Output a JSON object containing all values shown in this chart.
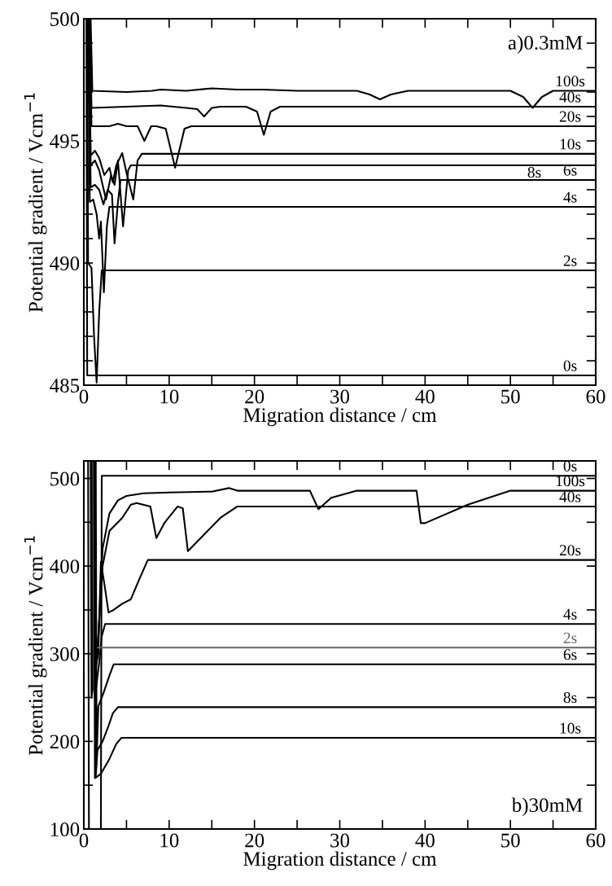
{
  "chart_data": [
    {
      "type": "line",
      "xlabel": "Migration distance / cm",
      "ylabel": "Potential gradient / Vcm$^{−1}$",
      "annotations": [
        "a)0.3mM"
      ],
      "xlim": [
        0,
        60
      ],
      "xticks": [
        0,
        {
          "value": 5,
          "label": null
        },
        10,
        {
          "value": 15,
          "label": null
        },
        20,
        {
          "value": 25,
          "label": null
        },
        30,
        {
          "value": 35,
          "label": null
        },
        40,
        {
          "value": 45,
          "label": null
        },
        50,
        {
          "value": 55,
          "label": null
        },
        60
      ],
      "ylim": [
        485,
        500
      ],
      "yticks": [
        485,
        {
          "value": 486,
          "label": null
        },
        {
          "value": 487,
          "label": null
        },
        {
          "value": 488,
          "label": null
        },
        {
          "value": 489,
          "label": null
        },
        490,
        {
          "value": 491,
          "label": null
        },
        {
          "value": 492,
          "label": null
        },
        {
          "value": 493,
          "label": null
        },
        {
          "value": 494,
          "label": null
        },
        495,
        {
          "value": 496,
          "label": null
        },
        {
          "value": 497,
          "label": null
        },
        {
          "value": 498,
          "label": null
        },
        {
          "value": 499,
          "label": null
        },
        500
      ],
      "tick_labels": "xy",
      "grid": false,
      "legend": "right",
      "marker": "none",
      "line_style": "solid",
      "series": [
        {
          "name": "0s",
          "color": "#000000",
          "x": [
            0.3,
            0.4,
            60
          ],
          "values": [
            500,
            485.4,
            485.4
          ]
        },
        {
          "name": "2s",
          "color": "#000000",
          "x": [
            0.4,
            0.5,
            0.9,
            1.2,
            1.5,
            1.8,
            2.1,
            60
          ],
          "values": [
            500,
            490,
            489.8,
            487,
            485.1,
            488,
            489.7,
            489.7
          ]
        },
        {
          "name": "4s",
          "color": "#000000",
          "x": [
            0.5,
            0.7,
            1.1,
            1.5,
            1.8,
            2.0,
            2.35,
            2.7,
            3.0,
            60
          ],
          "values": [
            500,
            492.5,
            492.6,
            492.0,
            491.0,
            491.7,
            488.8,
            491.5,
            492.3,
            492.3
          ]
        },
        {
          "name": "6s",
          "color": "#000000",
          "x": [
            0.6,
            0.8,
            1.3,
            1.8,
            2.3,
            2.8,
            3.3,
            3.6,
            4.0,
            4.3,
            60
          ],
          "values": [
            500,
            493.1,
            493.2,
            493.0,
            492.4,
            493.0,
            492.8,
            490.8,
            492.5,
            493.4,
            493.4
          ]
        },
        {
          "name": "8s",
          "color": "#000000",
          "x": [
            0.6,
            0.8,
            1.3,
            1.8,
            2.6,
            3.2,
            3.6,
            4.0,
            4.6,
            5.2,
            5.5,
            60
          ],
          "values": [
            500,
            494.0,
            494.2,
            493.8,
            492.6,
            493.6,
            493.2,
            494.2,
            491.5,
            493.8,
            494.0,
            494.0
          ]
        },
        {
          "name": "10s",
          "color": "#000000",
          "x": [
            0.6,
            0.8,
            1.3,
            1.8,
            2.4,
            3.0,
            3.4,
            3.8,
            4.5,
            5.0,
            5.8,
            6.3,
            6.8,
            60
          ],
          "values": [
            500,
            494.4,
            494.6,
            494.3,
            493.6,
            493.9,
            493.3,
            494.0,
            494.5,
            493.7,
            492.6,
            494.2,
            494.47,
            494.47
          ]
        },
        {
          "name": "20s",
          "color": "#000000",
          "x": [
            0.7,
            0.9,
            3,
            4,
            5,
            6.3,
            7.1,
            7.9,
            8.5,
            9.6,
            10.7,
            11.8,
            12.6,
            60
          ],
          "values": [
            500,
            495.6,
            495.6,
            495.7,
            495.6,
            495.6,
            495.0,
            495.6,
            495.6,
            495.5,
            493.9,
            495.5,
            495.6,
            495.6
          ]
        },
        {
          "name": "40s",
          "color": "#000000",
          "x": [
            0.7,
            0.9,
            5,
            9,
            12,
            13.3,
            14.1,
            15.0,
            16,
            19,
            20.3,
            21.1,
            21.9,
            23,
            60
          ],
          "values": [
            500,
            496.35,
            496.4,
            496.45,
            496.35,
            496.3,
            496.0,
            496.35,
            496.4,
            496.4,
            496.2,
            495.25,
            496.2,
            496.4,
            496.4
          ]
        },
        {
          "name": "100s",
          "color": "#000000",
          "x": [
            0.8,
            1.0,
            5,
            8,
            9,
            12,
            15,
            18,
            21,
            25,
            32,
            33.5,
            34.7,
            36,
            38,
            45,
            50,
            51.5,
            52.6,
            53.7,
            55,
            60
          ],
          "values": [
            500,
            497.05,
            497.0,
            497.05,
            497.1,
            497.05,
            497.15,
            497.1,
            497.1,
            497.05,
            497.05,
            496.9,
            496.7,
            496.9,
            497.05,
            497.05,
            497.05,
            496.8,
            496.35,
            496.8,
            497.05,
            497.05
          ]
        }
      ]
    },
    {
      "type": "line",
      "xlabel": "Migration distance / cm",
      "ylabel": "Potential gradient / Vcm$^{−1}$",
      "annotations": [
        "b)30mM"
      ],
      "xlim": [
        0,
        60
      ],
      "xticks": [
        0,
        {
          "value": 5,
          "label": null
        },
        10,
        {
          "value": 15,
          "label": null
        },
        20,
        {
          "value": 25,
          "label": null
        },
        30,
        {
          "value": 35,
          "label": null
        },
        40,
        {
          "value": 45,
          "label": null
        },
        50,
        {
          "value": 55,
          "label": null
        },
        60
      ],
      "ylim": [
        100,
        520
      ],
      "yticks": [
        100,
        {
          "value": 150,
          "label": null
        },
        200,
        {
          "value": 250,
          "label": null
        },
        300,
        {
          "value": 350,
          "label": null
        },
        400,
        {
          "value": 450,
          "label": null
        },
        500
      ],
      "tick_labels": "xy",
      "grid": false,
      "legend": "right",
      "marker": "none",
      "line_style": "solid",
      "series": [
        {
          "name": "0s",
          "color": "#000000",
          "x": [
            0.5,
            0.6,
            2.0,
            2.1,
            60
          ],
          "values": [
            520,
            100,
            100,
            503,
            503
          ]
        },
        {
          "name": "100s",
          "color": "#000000",
          "x": [
            0.8,
            0.9,
            1.6,
            2.2,
            3,
            4,
            5,
            7,
            10,
            15,
            17,
            18,
            20,
            26.5,
            27.5,
            29,
            32,
            39,
            39.5,
            40,
            45,
            50,
            60
          ],
          "values": [
            520,
            250,
            300,
            420,
            460,
            475,
            480,
            483,
            484,
            485,
            489,
            486,
            486,
            486,
            465,
            478,
            486,
            486,
            449,
            449,
            470,
            486,
            486
          ]
        },
        {
          "name": "40s",
          "color": "#000000",
          "x": [
            0.9,
            1.0,
            1.7,
            2.2,
            3,
            4.5,
            5.5,
            6.2,
            7.8,
            8.5,
            9.5,
            11.0,
            11.6,
            12.2,
            14,
            16,
            18,
            60
          ],
          "values": [
            520,
            260,
            320,
            400,
            440,
            455,
            470,
            472,
            468,
            432,
            450,
            468,
            466,
            417,
            435,
            455,
            468,
            468
          ]
        },
        {
          "name": "20s",
          "color": "#000000",
          "x": [
            1.0,
            1.1,
            1.7,
            2.0,
            2.4,
            2.9,
            3.5,
            4.5,
            5.5,
            6.5,
            7.5,
            60
          ],
          "values": [
            520,
            270,
            300,
            405,
            380,
            347,
            350,
            357,
            362,
            385,
            407,
            407
          ]
        },
        {
          "name": "4s",
          "color": "#000000",
          "x": [
            1.2,
            1.3,
            1.8,
            2.1,
            2.5,
            60
          ],
          "values": [
            520,
            250,
            290,
            320,
            334,
            334
          ]
        },
        {
          "name": "2s",
          "color": "#666666",
          "x": [
            1.1,
            1.2,
            1.3,
            60
          ],
          "values": [
            520,
            260,
            307,
            307
          ]
        },
        {
          "name": "6s",
          "color": "#000000",
          "x": [
            1.4,
            1.5,
            1.7,
            2.3,
            3.0,
            3.5,
            60
          ],
          "values": [
            520,
            180,
            240,
            255,
            275,
            288,
            288
          ]
        },
        {
          "name": "8s",
          "color": "#000000",
          "x": [
            1.3,
            1.4,
            1.6,
            2.2,
            2.8,
            3.4,
            4.0,
            60
          ],
          "values": [
            520,
            160,
            190,
            200,
            215,
            232,
            239,
            239
          ]
        },
        {
          "name": "10s",
          "color": "#000000",
          "x": [
            1.2,
            1.3,
            1.6,
            2.0,
            3.0,
            3.8,
            4.4,
            60
          ],
          "values": [
            520,
            158,
            160,
            163,
            180,
            197,
            204,
            204
          ]
        }
      ]
    }
  ]
}
